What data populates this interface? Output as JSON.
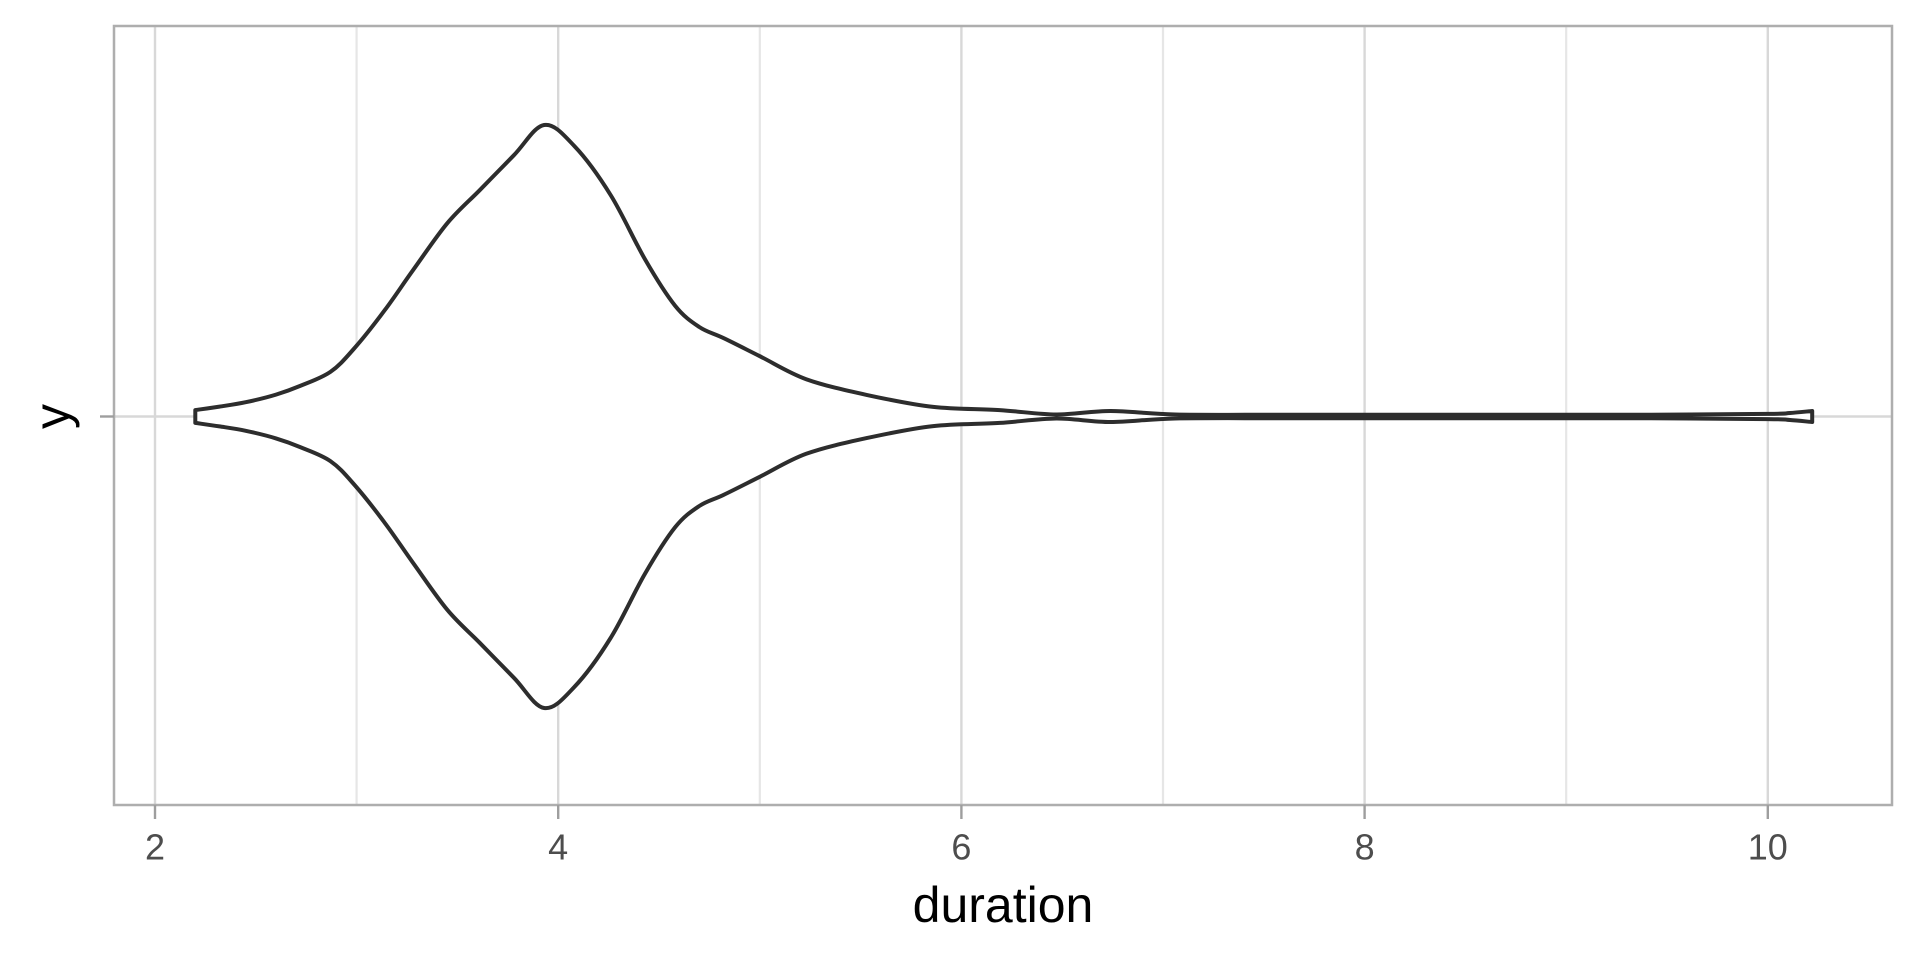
{
  "figure": {
    "x_axis_title": "duration",
    "y_axis_title": "y",
    "x_tick_labels": [
      "2",
      "4",
      "6",
      "8",
      "10"
    ]
  },
  "chart_data": {
    "type": "violin",
    "orientation": "horizontal",
    "title": "",
    "xlabel": "duration",
    "ylabel": "y",
    "category": "y",
    "xlim": [
      1.8,
      10.6
    ],
    "x_ticks_major": [
      2,
      4,
      6,
      8,
      10
    ],
    "x_ticks_minor": [
      3,
      5,
      7,
      9
    ],
    "grid": "vertical-major-and-minor, horizontal line at category center",
    "legend": "none",
    "data_extent": [
      2.2,
      10.22
    ],
    "mode_duration": 3.93,
    "density_profile": {
      "duration": [
        2.2,
        2.32,
        2.45,
        2.6,
        2.72,
        2.87,
        2.99,
        3.14,
        3.28,
        3.45,
        3.61,
        3.78,
        3.93,
        4.08,
        4.26,
        4.43,
        4.58,
        4.7,
        4.82,
        5.0,
        5.23,
        5.53,
        5.86,
        6.19,
        6.47,
        6.74,
        7.06,
        7.6,
        8.2,
        8.8,
        9.4,
        10.0,
        10.11,
        10.22
      ],
      "relative_width": [
        0.022,
        0.034,
        0.049,
        0.075,
        0.105,
        0.153,
        0.235,
        0.365,
        0.502,
        0.663,
        0.776,
        0.896,
        1.0,
        0.928,
        0.76,
        0.54,
        0.38,
        0.307,
        0.269,
        0.207,
        0.128,
        0.074,
        0.033,
        0.022,
        0.007,
        0.019,
        0.007,
        0.006,
        0.006,
        0.006,
        0.006,
        0.009,
        0.012,
        0.019
      ]
    },
    "colors": {
      "violin_outline": "#2d2d2d",
      "violin_fill": "#ffffff",
      "grid_major": "#d8d8d8",
      "grid_minor": "#e6e6e6",
      "panel_border": "#aeaeae",
      "tick_mark": "#9e9e9e",
      "tick_label": "#4d4d4d",
      "axis_title": "#000000",
      "background": "#ffffff"
    }
  }
}
